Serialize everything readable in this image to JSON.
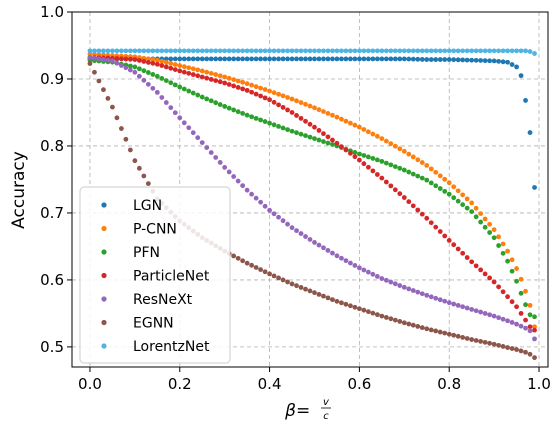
{
  "chart_data": {
    "type": "scatter",
    "title": "",
    "xlabel": "β = v/c",
    "xlabel_parts": {
      "symbol": "β",
      "equals": " = ",
      "numerator": "v",
      "denominator": "c"
    },
    "ylabel": "Accuracy",
    "xlim": [
      -0.04,
      1.02
    ],
    "ylim": [
      0.47,
      1.0
    ],
    "x_ticks": [
      0.0,
      0.2,
      0.4,
      0.6,
      0.8,
      1.0
    ],
    "x_tick_labels": [
      "0.0",
      "0.2",
      "0.4",
      "0.6",
      "0.8",
      "1.0"
    ],
    "y_ticks": [
      0.5,
      0.6,
      0.7,
      0.8,
      0.9,
      1.0
    ],
    "y_tick_labels": [
      "0.5",
      "0.6",
      "0.7",
      "0.8",
      "0.9",
      "1.0"
    ],
    "grid": true,
    "legend_position": "lower-left",
    "x": [
      0.0,
      0.05,
      0.1,
      0.15,
      0.2,
      0.25,
      0.3,
      0.35,
      0.4,
      0.45,
      0.5,
      0.55,
      0.6,
      0.65,
      0.7,
      0.75,
      0.8,
      0.85,
      0.9,
      0.93,
      0.95,
      0.96,
      0.97,
      0.98,
      0.99
    ],
    "series": [
      {
        "name": "LGN",
        "color": "#1f77b4",
        "values": [
          0.93,
          0.93,
          0.93,
          0.93,
          0.93,
          0.93,
          0.93,
          0.93,
          0.93,
          0.93,
          0.93,
          0.93,
          0.93,
          0.93,
          0.93,
          0.929,
          0.929,
          0.928,
          0.927,
          0.925,
          0.918,
          0.905,
          0.868,
          0.82,
          0.738
        ]
      },
      {
        "name": "P-CNN",
        "color": "#ff7f0e",
        "values": [
          0.937,
          0.935,
          0.933,
          0.928,
          0.92,
          0.912,
          0.903,
          0.893,
          0.882,
          0.87,
          0.857,
          0.843,
          0.828,
          0.811,
          0.792,
          0.771,
          0.745,
          0.715,
          0.675,
          0.643,
          0.617,
          0.601,
          0.583,
          0.562,
          0.53
        ]
      },
      {
        "name": "PFN",
        "color": "#2ca02c",
        "values": [
          0.928,
          0.925,
          0.918,
          0.904,
          0.888,
          0.873,
          0.859,
          0.846,
          0.834,
          0.822,
          0.811,
          0.8,
          0.788,
          0.777,
          0.764,
          0.749,
          0.728,
          0.702,
          0.663,
          0.628,
          0.598,
          0.58,
          0.563,
          0.548,
          0.545
        ]
      },
      {
        "name": "ParticleNet",
        "color": "#d62728",
        "values": [
          0.932,
          0.931,
          0.929,
          0.922,
          0.912,
          0.903,
          0.894,
          0.883,
          0.869,
          0.85,
          0.828,
          0.804,
          0.779,
          0.752,
          0.723,
          0.692,
          0.659,
          0.627,
          0.597,
          0.575,
          0.56,
          0.55,
          0.54,
          0.53,
          0.525
        ]
      },
      {
        "name": "ResNeXt",
        "color": "#9467bd",
        "values": [
          0.932,
          0.927,
          0.91,
          0.88,
          0.842,
          0.805,
          0.768,
          0.734,
          0.704,
          0.678,
          0.656,
          0.636,
          0.618,
          0.602,
          0.589,
          0.577,
          0.566,
          0.556,
          0.546,
          0.539,
          0.534,
          0.531,
          0.528,
          0.524,
          0.512
        ]
      },
      {
        "name": "EGNN",
        "color": "#8c564b",
        "values": [
          0.923,
          0.858,
          0.778,
          0.721,
          0.688,
          0.663,
          0.643,
          0.625,
          0.609,
          0.594,
          0.581,
          0.568,
          0.557,
          0.546,
          0.536,
          0.527,
          0.519,
          0.511,
          0.504,
          0.499,
          0.496,
          0.494,
          0.492,
          0.489,
          0.484
        ]
      },
      {
        "name": "LorentzNet",
        "color": "#4fb3e4",
        "values": [
          0.942,
          0.942,
          0.942,
          0.942,
          0.942,
          0.942,
          0.942,
          0.942,
          0.942,
          0.942,
          0.942,
          0.942,
          0.942,
          0.942,
          0.942,
          0.942,
          0.942,
          0.942,
          0.942,
          0.942,
          0.942,
          0.942,
          0.942,
          0.941,
          0.938
        ]
      }
    ]
  }
}
